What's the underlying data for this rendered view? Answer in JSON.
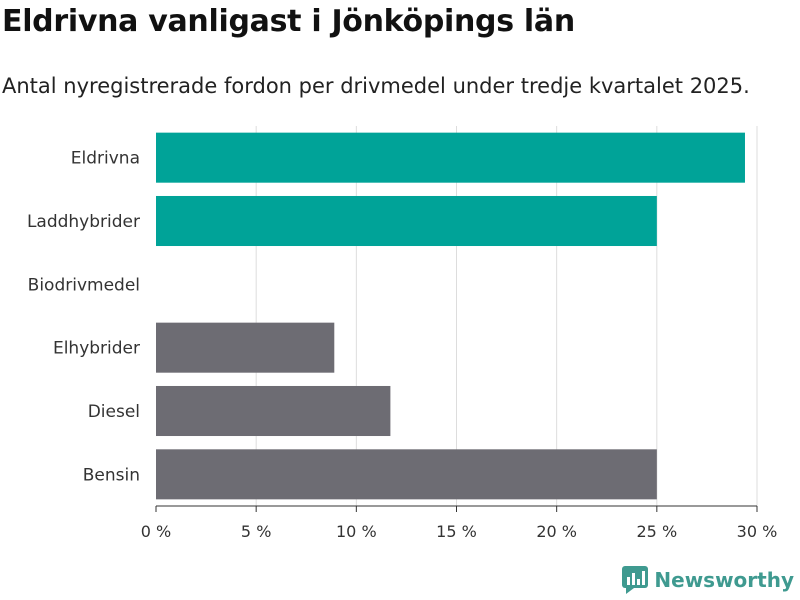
{
  "title": "Eldrivna vanligast i Jönköpings län",
  "subtitle": "Antal nyregistrerade fordon per drivmedel under tredje kvartalet 2025.",
  "brand": "Newsworthy",
  "colors": {
    "highlight": "#00a398",
    "base": "#6d6c73",
    "brand": "#3f9a90",
    "grid": "#dddddd"
  },
  "chart_data": {
    "type": "bar",
    "orientation": "horizontal",
    "categories": [
      "Eldrivna",
      "Laddhybrider",
      "Biodrivmedel",
      "Elhybrider",
      "Diesel",
      "Bensin"
    ],
    "values": [
      29.4,
      25.0,
      0,
      8.9,
      11.7,
      25.0
    ],
    "highlight": [
      true,
      true,
      false,
      false,
      false,
      false
    ],
    "xlim": [
      0,
      30
    ],
    "xticks": [
      0,
      5,
      10,
      15,
      20,
      25,
      30
    ],
    "xtick_labels": [
      "0 %",
      "5 %",
      "10 %",
      "15 %",
      "20 %",
      "25 %",
      "30 %"
    ],
    "grid": true
  }
}
